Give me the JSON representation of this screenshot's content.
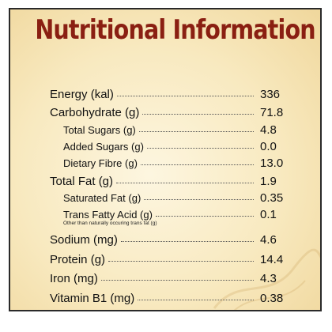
{
  "title": "Nutritional Information",
  "rows": [
    {
      "label": "Energy (kal)",
      "value": "336"
    },
    {
      "label": "Carbohydrate (g)",
      "value": "71.8"
    },
    {
      "label": "Total Sugars (g)",
      "value": "4.8"
    },
    {
      "label": "Added Sugars (g)",
      "value": "0.0"
    },
    {
      "label": "Dietary Fibre (g)",
      "value": "13.0"
    },
    {
      "label": "Total Fat (g)",
      "value": "1.9"
    },
    {
      "label": "Saturated Fat (g)",
      "value": "0.35"
    },
    {
      "label": "Trans Fatty Acid (g)",
      "value": "0.1"
    },
    {
      "label": "Sodium (mg)",
      "value": "4.6"
    },
    {
      "label": "Protein (g)",
      "value": "14.4"
    },
    {
      "label": "Iron (mg)",
      "value": "4.3"
    },
    {
      "label": "Vitamin B1 (mg)",
      "value": "0.38"
    }
  ],
  "trans_fat_note": "Other than naturally occuring trans fat (g)",
  "colors": {
    "title": "#8a1f12",
    "background": "#f8e9bf",
    "border": "#2a2a2a"
  }
}
